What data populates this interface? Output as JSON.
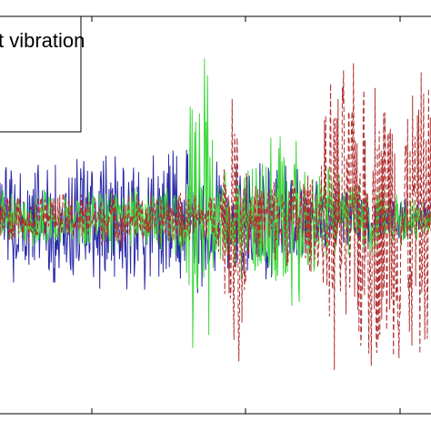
{
  "chart_data": {
    "type": "line",
    "title": "",
    "xlabel": "",
    "ylabel": "",
    "xlim": [
      0,
      1000
    ],
    "ylim": [
      -1,
      1
    ],
    "grid": false,
    "legend": {
      "placement": "top-left",
      "partially_visible": true,
      "entries": [
        "t vibration"
      ]
    },
    "series": [
      {
        "color": "#2a2aa8",
        "style": "solid",
        "amplitude_profile": [
          [
            0,
            0.35
          ],
          [
            470,
            0.4
          ],
          [
            620,
            0.35
          ],
          [
            760,
            0.2
          ],
          [
            1000,
            0.1
          ]
        ]
      },
      {
        "color": "#b03030",
        "style": "dashed",
        "amplitude_profile": [
          [
            0,
            0.15
          ],
          [
            500,
            0.15
          ],
          [
            560,
            0.95
          ],
          [
            580,
            0.2
          ],
          [
            740,
            0.3
          ],
          [
            770,
            0.85
          ],
          [
            1000,
            0.8
          ]
        ]
      },
      {
        "color": "#3fd83f",
        "style": "solid",
        "amplitude_profile": [
          [
            0,
            0.15
          ],
          [
            430,
            0.2
          ],
          [
            450,
            0.95
          ],
          [
            480,
            0.9
          ],
          [
            500,
            0.2
          ],
          [
            680,
            0.55
          ],
          [
            720,
            0.3
          ],
          [
            1000,
            0.1
          ]
        ]
      }
    ]
  },
  "colors": {
    "axes": "#000000",
    "background": "#ffffff"
  }
}
